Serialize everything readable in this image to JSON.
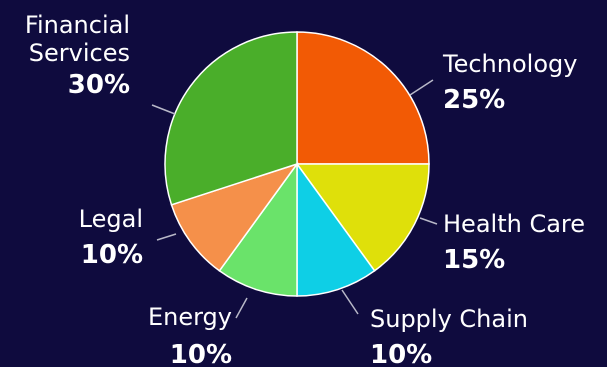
{
  "chart_data": {
    "type": "pie",
    "start_angle_deg": 0,
    "direction": "clockwise",
    "slices": [
      {
        "label": [
          "Technology"
        ],
        "value": 25,
        "value_label": "25%",
        "color": "#f25a05"
      },
      {
        "label": [
          "Health Care"
        ],
        "value": 15,
        "value_label": "15%",
        "color": "#dfe00a"
      },
      {
        "label": [
          "Supply Chain"
        ],
        "value": 10,
        "value_label": "10%",
        "color": "#0ecfe6"
      },
      {
        "label": [
          "Energy"
        ],
        "value": 10,
        "value_label": "10%",
        "color": "#6ae36a"
      },
      {
        "label": [
          "Legal"
        ],
        "value": 10,
        "value_label": "10%",
        "color": "#f5904a"
      },
      {
        "label": [
          "Financial",
          "Services"
        ],
        "value": 30,
        "value_label": "30%",
        "color": "#4aae2a"
      }
    ]
  }
}
